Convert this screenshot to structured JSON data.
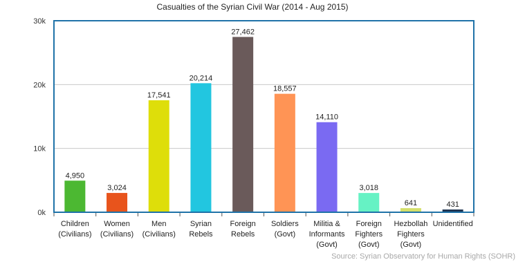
{
  "chart_data": {
    "type": "bar",
    "title": "Casualties of the Syrian Civil War (2014 - Aug 2015)",
    "source": "Source: Syrian Observatory for Human Rights (SOHR)",
    "xlabel": "",
    "ylabel": "",
    "ylim": [
      0,
      30000
    ],
    "yticks": [
      0,
      10000,
      20000,
      30000
    ],
    "ytick_labels": [
      "0k",
      "10k",
      "20k",
      "30k"
    ],
    "grid": true,
    "legend": "none",
    "categories": [
      [
        "Children",
        "(Civilians)"
      ],
      [
        "Women",
        "(Civilians)"
      ],
      [
        "Men",
        "(Civilians)"
      ],
      [
        "Syrian",
        "Rebels"
      ],
      [
        "Foreign",
        "Rebels"
      ],
      [
        "Soldiers",
        "(Govt)"
      ],
      [
        "Militia &",
        "Informants",
        "(Govt)"
      ],
      [
        "Foreign",
        "Fighters",
        "(Govt)"
      ],
      [
        "Hezbollah",
        "Fighters",
        "(Govt)"
      ],
      [
        "Unidentified"
      ]
    ],
    "values": [
      4950,
      3024,
      17541,
      20214,
      27462,
      18557,
      14110,
      3018,
      641,
      431
    ],
    "value_labels": [
      "4,950",
      "3,024",
      "17,541",
      "20,214",
      "27,462",
      "18,557",
      "14,110",
      "3,018",
      "641",
      "431"
    ],
    "colors": [
      "#4cb832",
      "#e8541c",
      "#dede0a",
      "#22c6e0",
      "#6a5a5a",
      "#ff9455",
      "#7a6af2",
      "#66f2c4",
      "#d4e06a",
      "#1e3350"
    ],
    "frame_color": "#1f72a8",
    "grid_color": "#c8c8c8"
  }
}
